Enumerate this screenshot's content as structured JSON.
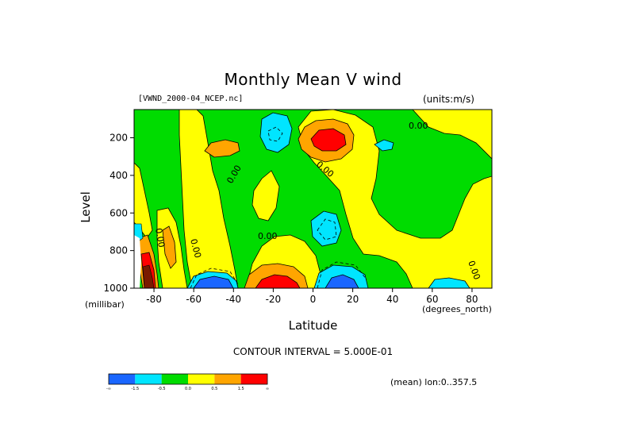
{
  "chart_data": {
    "type": "heatmap",
    "title": "Monthly Mean V wind",
    "dataset_label": "[VWND_2000-04_NCEP.nc]",
    "units_label": "(units:m/s)",
    "xlabel": "Latitude",
    "xlabel_unit": "(degrees_north)",
    "ylabel": "Level",
    "ylabel_unit": "(millibar)",
    "xlim": [
      -90,
      90
    ],
    "ylim": [
      1000,
      50
    ],
    "x_ticks": [
      -80,
      -60,
      -40,
      -20,
      0,
      20,
      40,
      60,
      80
    ],
    "y_ticks": [
      200,
      400,
      600,
      800,
      1000
    ],
    "contour_interval_label": "CONTOUR INTERVAL = 5.000E-01",
    "mean_label": "(mean) lon:0..357.5",
    "contour_labels": [
      "0.00",
      "0.00",
      "0.00",
      "0.00",
      "0.00",
      "0.00",
      "0.00"
    ],
    "colorbar": {
      "colors": [
        "#1a66ff",
        "#00e5ff",
        "#00dc00",
        "#ffff00",
        "#ffa500",
        "#ff0000"
      ],
      "tick_labels": [
        "-∞",
        "-1.5",
        "-0.5",
        "0.0",
        "0.5",
        "1.5",
        "∞"
      ]
    },
    "features": [
      {
        "lat": -52,
        "level": 950,
        "value": -1.5
      },
      {
        "lat": -20,
        "level": 960,
        "value": 1.5
      },
      {
        "lat": 12,
        "level": 960,
        "value": -1.5
      },
      {
        "lat": 10,
        "level": 170,
        "value": 1.5
      },
      {
        "lat": -18,
        "level": 150,
        "value": -0.5
      },
      {
        "lat": 36,
        "level": 190,
        "value": -0.5
      },
      {
        "lat": 8,
        "level": 720,
        "value": -0.5
      },
      {
        "lat": -88,
        "level": 900,
        "value": 1.5
      }
    ]
  }
}
